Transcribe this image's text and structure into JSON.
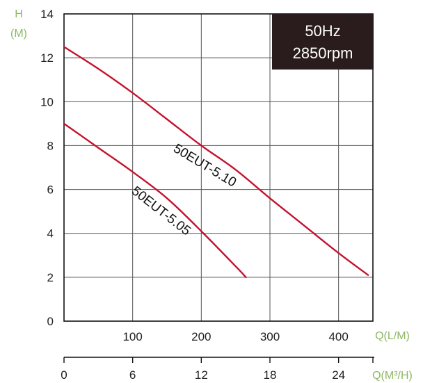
{
  "chart_data": {
    "type": "line",
    "info_box": {
      "line1": "50Hz",
      "line2": "2850rpm"
    },
    "y_axis": {
      "title_line1": "H",
      "title_line2": "(M)",
      "range": [
        0,
        14
      ],
      "ticks": [
        {
          "value": 14,
          "label": "14"
        },
        {
          "value": 12,
          "label": "12"
        },
        {
          "value": 10,
          "label": "10"
        },
        {
          "value": 8,
          "label": "8"
        },
        {
          "value": 6,
          "label": "6"
        },
        {
          "value": 4,
          "label": "4"
        },
        {
          "value": 2,
          "label": "2"
        },
        {
          "value": 0,
          "label": "0"
        }
      ]
    },
    "x_axis": {
      "title": "Q(L/M)",
      "range": [
        0,
        450
      ],
      "ticks": [
        {
          "value": 100,
          "label": "100"
        },
        {
          "value": 200,
          "label": "200"
        },
        {
          "value": 300,
          "label": "300"
        },
        {
          "value": 400,
          "label": "400"
        }
      ]
    },
    "x_axis_secondary": {
      "title": "Q(M³/H)",
      "range": [
        0,
        27
      ],
      "ticks": [
        {
          "value": 0,
          "label": "0"
        },
        {
          "value": 6,
          "label": "6"
        },
        {
          "value": 12,
          "label": "12"
        },
        {
          "value": 18,
          "label": "18"
        },
        {
          "value": 24,
          "label": "24"
        }
      ]
    },
    "grid": true,
    "series": [
      {
        "name": "50EUT-5.10",
        "color": "#c4122f",
        "points": [
          [
            0,
            12.5
          ],
          [
            50,
            11.5
          ],
          [
            100,
            10.4
          ],
          [
            150,
            9.2
          ],
          [
            200,
            8.0
          ],
          [
            250,
            6.9
          ],
          [
            300,
            5.6
          ],
          [
            350,
            4.35
          ],
          [
            400,
            3.1
          ],
          [
            443,
            2.1
          ]
        ]
      },
      {
        "name": "50EUT-5.05",
        "color": "#c4122f",
        "points": [
          [
            0,
            9.0
          ],
          [
            50,
            7.9
          ],
          [
            100,
            6.8
          ],
          [
            150,
            5.6
          ],
          [
            200,
            4.1
          ],
          [
            250,
            2.5
          ],
          [
            265,
            2.0
          ]
        ]
      }
    ]
  }
}
